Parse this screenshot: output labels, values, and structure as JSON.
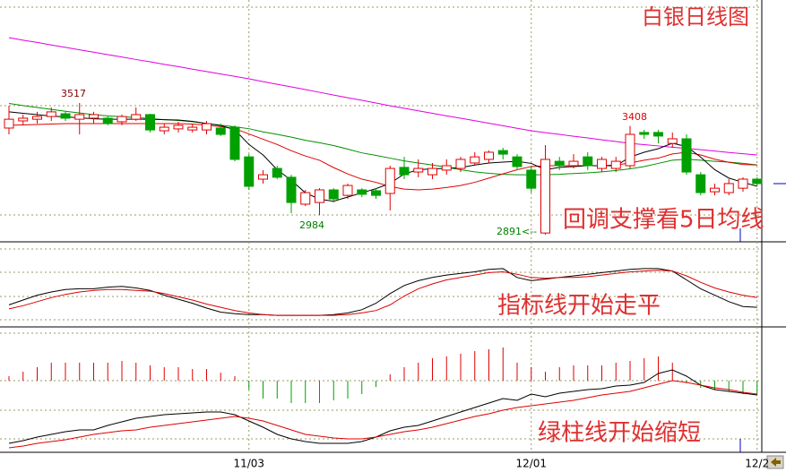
{
  "chart_data": [
    {
      "type": "candlestick",
      "title": "白银日线图",
      "annotations": [
        "回调支撑看5日均线",
        "3517",
        "3408",
        "2984",
        "2891<--"
      ],
      "categories": [
        null,
        null,
        null,
        null,
        null,
        null,
        null,
        null,
        null,
        null,
        null,
        null,
        null,
        null,
        null,
        null,
        null,
        "11/03",
        null,
        null,
        null,
        null,
        null,
        null,
        null,
        null,
        null,
        null,
        null,
        null,
        null,
        null,
        null,
        null,
        null,
        null,
        null,
        "12/01",
        null,
        null,
        null,
        null,
        null,
        null,
        null,
        null,
        null,
        null,
        null,
        null,
        null,
        null,
        null,
        "12/2"
      ],
      "open": [
        3398,
        3432,
        3440,
        3453,
        3466,
        3440,
        3445,
        3445,
        3428,
        3440,
        3462,
        3385,
        3394,
        3389,
        3389,
        3398,
        3402,
        3261,
        3155,
        3206,
        3164,
        3036,
        3044,
        3104,
        3078,
        3104,
        3100,
        3087,
        3211,
        3189,
        3176,
        3198,
        3206,
        3232,
        3249,
        3291,
        3261,
        3198,
        2899,
        3240,
        3219,
        3261,
        3206,
        3206,
        3219,
        3377,
        3377,
        3325,
        3347,
        3176,
        3095,
        3091,
        3112,
        3155
      ],
      "high": [
        3504,
        3462,
        3475,
        3496,
        3475,
        3517,
        3475,
        3453,
        3462,
        3496,
        3466,
        3419,
        3428,
        3419,
        3432,
        3419,
        3411,
        3274,
        3198,
        3219,
        3176,
        3104,
        3112,
        3112,
        3134,
        3112,
        3112,
        3219,
        3261,
        3249,
        3232,
        3249,
        3261,
        3283,
        3291,
        3304,
        3274,
        3219,
        3317,
        3261,
        3274,
        3283,
        3261,
        3261,
        3408,
        3389,
        3389,
        3377,
        3368,
        3189,
        3134,
        3155,
        3164,
        3164
      ],
      "low": [
        3368,
        3411,
        3419,
        3432,
        3432,
        3368,
        3419,
        3411,
        3411,
        3432,
        3377,
        3368,
        3377,
        3377,
        3368,
        3360,
        3240,
        3104,
        3134,
        3155,
        2993,
        3027,
        2984,
        3044,
        3061,
        3070,
        3061,
        3006,
        3155,
        3164,
        3155,
        3176,
        3189,
        3219,
        3232,
        3249,
        3198,
        3091,
        2891,
        3198,
        3206,
        3198,
        3189,
        3189,
        3206,
        3347,
        3325,
        3304,
        3176,
        3078,
        3078,
        3078,
        3095,
        3121
      ],
      "close": [
        3440,
        3445,
        3453,
        3475,
        3445,
        3462,
        3462,
        3419,
        3453,
        3462,
        3389,
        3402,
        3411,
        3402,
        3419,
        3368,
        3249,
        3121,
        3176,
        3164,
        3044,
        3091,
        3104,
        3061,
        3125,
        3083,
        3078,
        3206,
        3176,
        3206,
        3206,
        3219,
        3249,
        3261,
        3283,
        3274,
        3215,
        3112,
        3249,
        3219,
        3240,
        3219,
        3249,
        3240,
        3368,
        3368,
        3360,
        3347,
        3189,
        3091,
        3112,
        3134,
        3155,
        3134
      ],
      "up_color": "#e00000",
      "down_color": "#00a000",
      "ylim": [
        2857,
        4007
      ],
      "series": [
        {
          "color": "#e000e0",
          "values": [
            3828,
            3816,
            3805,
            3793,
            3782,
            3770,
            3759,
            3747,
            3736,
            3724,
            3713,
            3701,
            3690,
            3678,
            3667,
            3655,
            3644,
            3632,
            3619,
            3606,
            3594,
            3581,
            3568,
            3555,
            3542,
            3530,
            3517,
            3504,
            3492,
            3480,
            3468,
            3456,
            3445,
            3433,
            3421,
            3409,
            3397,
            3385,
            3376,
            3368,
            3359,
            3351,
            3342,
            3334,
            3325,
            3319,
            3313,
            3307,
            3301,
            3295,
            3289,
            3282,
            3276,
            3270
          ]
        },
        {
          "color": "#009000",
          "values": [
            3515,
            3505,
            3496,
            3487,
            3478,
            3470,
            3462,
            3456,
            3452,
            3448,
            3443,
            3438,
            3434,
            3428,
            3420,
            3412,
            3404,
            3395,
            3380,
            3368,
            3355,
            3340,
            3328,
            3315,
            3298,
            3280,
            3268,
            3255,
            3242,
            3232,
            3222,
            3212,
            3200,
            3190,
            3183,
            3178,
            3176,
            3176,
            3176,
            3178,
            3182,
            3185,
            3190,
            3196,
            3204,
            3215,
            3230,
            3245,
            3250,
            3245,
            3240,
            3236,
            3230,
            3223
          ]
        },
        {
          "color": "#e00000",
          "values": [
            3411,
            3413,
            3415,
            3417,
            3419,
            3419,
            3419,
            3419,
            3419,
            3419,
            3419,
            3419,
            3419,
            3417,
            3412,
            3405,
            3395,
            3370,
            3345,
            3320,
            3290,
            3265,
            3245,
            3210,
            3180,
            3155,
            3140,
            3120,
            3108,
            3104,
            3108,
            3115,
            3125,
            3140,
            3160,
            3180,
            3200,
            3215,
            3219,
            3219,
            3219,
            3219,
            3219,
            3222,
            3232,
            3245,
            3255,
            3275,
            3283,
            3270,
            3250,
            3235,
            3225,
            3222
          ]
        },
        {
          "color": "#000000",
          "values": [
            3475,
            3468,
            3462,
            3455,
            3451,
            3447,
            3442,
            3440,
            3440,
            3440,
            3440,
            3438,
            3436,
            3430,
            3420,
            3410,
            3390,
            3320,
            3270,
            3200,
            3150,
            3090,
            3060,
            3050,
            3070,
            3090,
            3110,
            3135,
            3180,
            3200,
            3204,
            3206,
            3210,
            3222,
            3232,
            3236,
            3240,
            3230,
            3200,
            3211,
            3215,
            3219,
            3219,
            3219,
            3260,
            3283,
            3300,
            3326,
            3310,
            3260,
            3200,
            3160,
            3140,
            3121
          ]
        }
      ]
    },
    {
      "type": "line",
      "annotations": [
        "指标线开始走平"
      ],
      "ylim": [
        0,
        100
      ],
      "series": [
        {
          "color": "#000000",
          "values": [
            24,
            30,
            36,
            40,
            43,
            44,
            44,
            46,
            47,
            45,
            42,
            36,
            31,
            26,
            20,
            15,
            13,
            12,
            12,
            11,
            11,
            11,
            11,
            12,
            14,
            18,
            26,
            38,
            48,
            54,
            58,
            61,
            63,
            65,
            68,
            69,
            58,
            54,
            56,
            58,
            60,
            62,
            64,
            66,
            68,
            69,
            69,
            66,
            55,
            44,
            36,
            28,
            22,
            21
          ]
        },
        {
          "color": "#e00000",
          "values": [
            19,
            23,
            28,
            33,
            37,
            40,
            42,
            43,
            43,
            42,
            41,
            38,
            34,
            30,
            25,
            21,
            17,
            14,
            12,
            11,
            11,
            11,
            11,
            11,
            12,
            14,
            17,
            24,
            35,
            44,
            50,
            55,
            58,
            61,
            64,
            65,
            62,
            58,
            57,
            58,
            58,
            59,
            61,
            63,
            65,
            66,
            67,
            66,
            60,
            52,
            45,
            40,
            36,
            33
          ]
        }
      ]
    },
    {
      "type": "macd",
      "annotations": [
        "绿柱线开始缩短"
      ],
      "ylim": [
        -80,
        57
      ],
      "up_color": "#e00000",
      "down_color": "#00a000",
      "values": [
        5,
        10,
        15,
        20,
        20,
        20,
        20,
        20,
        22,
        20,
        17,
        15,
        15,
        13,
        13,
        9,
        5,
        -10,
        -20,
        -20,
        -25,
        -25,
        -25,
        -22,
        -20,
        -15,
        -7,
        7,
        15,
        20,
        25,
        27,
        30,
        33,
        35,
        37,
        20,
        15,
        10,
        15,
        17,
        17,
        17,
        20,
        22,
        25,
        27,
        20,
        -3,
        -8,
        -10,
        -12,
        -15,
        -15
      ],
      "series": [
        {
          "color": "#000000",
          "values": [
            -70,
            -67,
            -63,
            -60,
            -57,
            -55,
            -55,
            -50,
            -46,
            -42,
            -40,
            -38,
            -37,
            -36,
            -35,
            -35,
            -38,
            -45,
            -52,
            -60,
            -65,
            -68,
            -70,
            -70,
            -70,
            -68,
            -63,
            -56,
            -52,
            -50,
            -45,
            -40,
            -35,
            -30,
            -25,
            -20,
            -22,
            -15,
            -18,
            -14,
            -12,
            -10,
            -9,
            -6,
            -5,
            -2,
            8,
            12,
            5,
            -5,
            -10,
            -12,
            -14,
            -16
          ]
        },
        {
          "color": "#e00000",
          "values": [
            -75,
            -73,
            -70,
            -68,
            -66,
            -63,
            -60,
            -58,
            -56,
            -55,
            -52,
            -50,
            -48,
            -46,
            -44,
            -42,
            -40,
            -42,
            -45,
            -50,
            -55,
            -60,
            -62,
            -64,
            -65,
            -65,
            -63,
            -60,
            -57,
            -55,
            -52,
            -48,
            -44,
            -40,
            -37,
            -33,
            -30,
            -28,
            -26,
            -24,
            -22,
            -19,
            -16,
            -14,
            -12,
            -8,
            -4,
            0,
            -2,
            -5,
            -8,
            -10,
            -13,
            -15
          ]
        }
      ]
    }
  ]
}
